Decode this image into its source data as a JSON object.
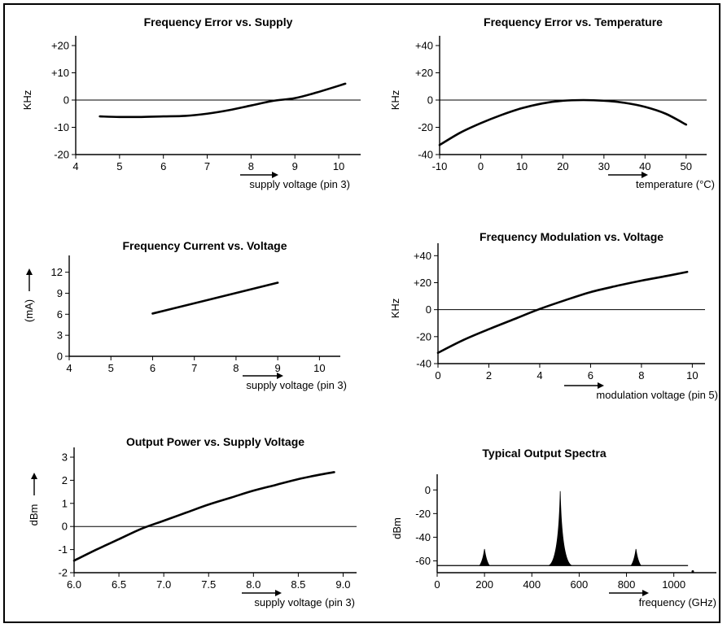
{
  "colors": {
    "line": "#000000",
    "background": "#ffffff"
  },
  "chart_data": [
    {
      "type": "line",
      "title": "Frequency Error vs. Supply",
      "xlabel": "supply voltage (pin 3)",
      "ylabel": "KHz",
      "xlim": [
        4,
        10.5
      ],
      "ylim": [
        -20,
        20
      ],
      "x_ticks": [
        4,
        5,
        6,
        7,
        8,
        9,
        10
      ],
      "x_tick_labels": [
        "4",
        "5",
        "6",
        "7",
        "8",
        "9",
        "10"
      ],
      "y_ticks": [
        -20,
        -10,
        0,
        10,
        20
      ],
      "y_tick_labels": [
        "-20",
        "-10",
        "0",
        "+10",
        "+20"
      ],
      "zero_line": true,
      "series": [
        {
          "x": [
            4.55,
            5.0,
            5.5,
            6.0,
            6.5,
            7.0,
            7.5,
            8.0,
            8.5,
            9.0,
            9.5,
            10.15
          ],
          "y": [
            -6,
            -6.2,
            -6.2,
            -6.0,
            -5.8,
            -5.0,
            -3.7,
            -2.0,
            -0.3,
            0.7,
            2.8,
            6.0
          ]
        }
      ]
    },
    {
      "type": "line",
      "title": "Frequency Error vs. Temperature",
      "xlabel": "temperature (°C)",
      "ylabel": "KHz",
      "xlim": [
        -10,
        55
      ],
      "ylim": [
        -40,
        40
      ],
      "x_ticks": [
        -10,
        0,
        10,
        20,
        30,
        40,
        50
      ],
      "x_tick_labels": [
        "-10",
        "0",
        "10",
        "20",
        "30",
        "40",
        "50"
      ],
      "y_ticks": [
        -40,
        -20,
        0,
        20,
        40
      ],
      "y_tick_labels": [
        "-40",
        "-20",
        "0",
        "+20",
        "+40"
      ],
      "zero_line": true,
      "series": [
        {
          "x": [
            -10,
            -5,
            0,
            5,
            10,
            15,
            20,
            25,
            30,
            35,
            40,
            45,
            50
          ],
          "y": [
            -33,
            -24,
            -17,
            -11,
            -6,
            -2.5,
            -0.5,
            0,
            -0.5,
            -2,
            -5,
            -10,
            -18
          ]
        }
      ]
    },
    {
      "type": "line",
      "title": "Frequency Current vs. Voltage",
      "xlabel": "supply voltage (pin 3)",
      "ylabel": "(mA)",
      "xlim": [
        4,
        10.5
      ],
      "ylim": [
        0,
        13
      ],
      "x_ticks": [
        4,
        5,
        6,
        7,
        8,
        9,
        10
      ],
      "x_tick_labels": [
        "4",
        "5",
        "6",
        "7",
        "8",
        "9",
        "10"
      ],
      "y_ticks": [
        0,
        3,
        6,
        9,
        12
      ],
      "y_tick_labels": [
        "0",
        "3",
        "6",
        "9",
        "12"
      ],
      "zero_line": false,
      "series": [
        {
          "x": [
            6,
            9
          ],
          "y": [
            6.1,
            10.5
          ]
        }
      ]
    },
    {
      "type": "line",
      "title": "Frequency Modulation vs. Voltage",
      "xlabel": "modulation voltage (pin 5)",
      "ylabel": "KHz",
      "xlim": [
        0,
        10.5
      ],
      "ylim": [
        -40,
        42
      ],
      "x_ticks": [
        0,
        2,
        4,
        6,
        8,
        10
      ],
      "x_tick_labels": [
        "0",
        "2",
        "4",
        "6",
        "8",
        "10"
      ],
      "y_ticks": [
        -40,
        -20,
        0,
        20,
        40
      ],
      "y_tick_labels": [
        "-40",
        "-20",
        "0",
        "+20",
        "+40"
      ],
      "zero_line": true,
      "series": [
        {
          "x": [
            0,
            1,
            2,
            3,
            4,
            5,
            6,
            7,
            8,
            9,
            9.8
          ],
          "y": [
            -32,
            -22.5,
            -14.5,
            -7,
            0.5,
            7,
            13,
            17.5,
            21.5,
            25,
            28
          ]
        }
      ]
    },
    {
      "type": "line",
      "title": "Output Power vs. Supply Voltage",
      "xlabel": "supply voltage (pin 3)",
      "ylabel": "dBm",
      "xlim": [
        6.0,
        9.15
      ],
      "ylim": [
        -2,
        3
      ],
      "x_ticks": [
        6.0,
        6.5,
        7.0,
        7.5,
        8.0,
        8.5,
        9.0
      ],
      "x_tick_labels": [
        "6.0",
        "6.5",
        "7.0",
        "7.5",
        "8.0",
        "8.5",
        "9.0"
      ],
      "y_ticks": [
        -2,
        -1,
        0,
        1,
        2,
        3
      ],
      "y_tick_labels": [
        "-2",
        "-1",
        "0",
        "1",
        "2",
        "3"
      ],
      "zero_line": true,
      "series": [
        {
          "x": [
            6.0,
            6.25,
            6.5,
            6.75,
            7.0,
            7.25,
            7.5,
            7.75,
            8.0,
            8.25,
            8.5,
            8.75,
            8.9
          ],
          "y": [
            -1.48,
            -1.0,
            -0.55,
            -0.1,
            0.25,
            0.6,
            0.95,
            1.25,
            1.55,
            1.8,
            2.05,
            2.25,
            2.35
          ]
        }
      ]
    },
    {
      "type": "line",
      "title": "Typical Output Spectra",
      "xlabel": "frequency (GHz)",
      "ylabel": "dBm",
      "xlim": [
        0,
        1180
      ],
      "ylim": [
        -70,
        5
      ],
      "x_ticks": [
        0,
        200,
        400,
        600,
        800,
        1000
      ],
      "x_tick_labels": [
        "0",
        "200",
        "400",
        "600",
        "800",
        "1000"
      ],
      "y_ticks": [
        -60,
        -40,
        -20,
        0
      ],
      "y_tick_labels": [
        "-60",
        "-40",
        "-20",
        "0"
      ],
      "zero_line": false,
      "series": [
        {
          "noise_floor": -64,
          "x_range": [
            0,
            1060
          ],
          "peaks": [
            {
              "x": 200,
              "y": -50
            },
            {
              "x": 520,
              "y": -1
            },
            {
              "x": 840,
              "y": -50
            }
          ]
        }
      ]
    }
  ]
}
